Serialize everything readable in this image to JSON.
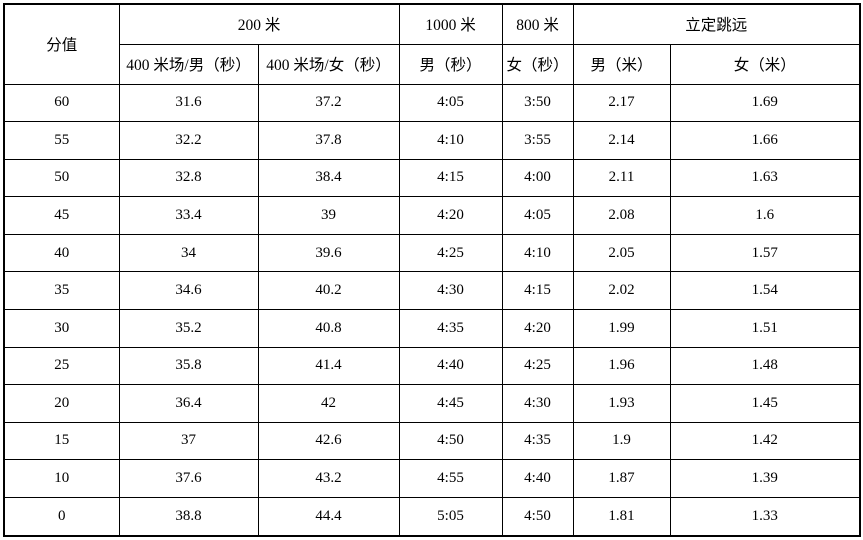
{
  "chart_data": {
    "type": "table",
    "title": "",
    "border_color": "#000000",
    "background_color": "#ffffff",
    "text_color": "#000000",
    "header": {
      "score": "分值",
      "m200": "200 米",
      "m1000": "1000 米",
      "m800": "800 米",
      "jump": "立定跳远",
      "m200_male": "400 米场/男（秒）",
      "m200_female": "400 米场/女（秒）",
      "m1000_male": "男（秒）",
      "m800_female": "女（秒）",
      "jump_male": "男（米）",
      "jump_female": "女（米）"
    },
    "columns": [
      "分值",
      "200米 400米场/男（秒）",
      "200米 400米场/女（秒）",
      "1000米 男（秒）",
      "800米 女（秒）",
      "立定跳远 男（米）",
      "立定跳远 女（米）"
    ],
    "rows": [
      [
        "60",
        "31.6",
        "37.2",
        "4:05",
        "3:50",
        "2.17",
        "1.69"
      ],
      [
        "55",
        "32.2",
        "37.8",
        "4:10",
        "3:55",
        "2.14",
        "1.66"
      ],
      [
        "50",
        "32.8",
        "38.4",
        "4:15",
        "4:00",
        "2.11",
        "1.63"
      ],
      [
        "45",
        "33.4",
        "39",
        "4:20",
        "4:05",
        "2.08",
        "1.6"
      ],
      [
        "40",
        "34",
        "39.6",
        "4:25",
        "4:10",
        "2.05",
        "1.57"
      ],
      [
        "35",
        "34.6",
        "40.2",
        "4:30",
        "4:15",
        "2.02",
        "1.54"
      ],
      [
        "30",
        "35.2",
        "40.8",
        "4:35",
        "4:20",
        "1.99",
        "1.51"
      ],
      [
        "25",
        "35.8",
        "41.4",
        "4:40",
        "4:25",
        "1.96",
        "1.48"
      ],
      [
        "20",
        "36.4",
        "42",
        "4:45",
        "4:30",
        "1.93",
        "1.45"
      ],
      [
        "15",
        "37",
        "42.6",
        "4:50",
        "4:35",
        "1.9",
        "1.42"
      ],
      [
        "10",
        "37.6",
        "43.2",
        "4:55",
        "4:40",
        "1.87",
        "1.39"
      ],
      [
        "0",
        "38.8",
        "44.4",
        "5:05",
        "4:50",
        "1.81",
        "1.33"
      ]
    ]
  }
}
